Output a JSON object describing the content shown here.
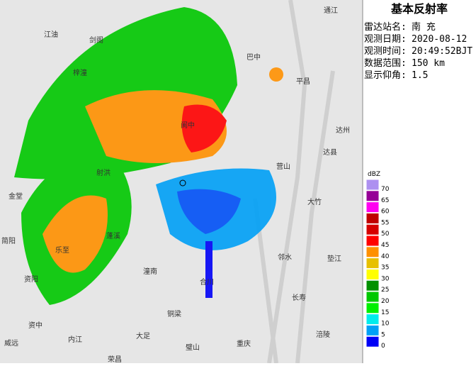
{
  "header": {
    "title": "基本反射率"
  },
  "info": [
    {
      "label": "雷达站名:",
      "value": "南 充"
    },
    {
      "label": "观测日期:",
      "value": "2020-08-12"
    },
    {
      "label": "观测时间:",
      "value": "20:49:52BJT"
    },
    {
      "label": "数据范围:",
      "value": "150 km"
    },
    {
      "label": "显示仰角:",
      "value": "1.5"
    }
  ],
  "legend": {
    "unit": "dBZ",
    "items": [
      {
        "label": "70",
        "color": "#ad90f0"
      },
      {
        "label": "65",
        "color": "#960096"
      },
      {
        "label": "60",
        "color": "#ff00f0"
      },
      {
        "label": "55",
        "color": "#c00000"
      },
      {
        "label": "50",
        "color": "#d60000"
      },
      {
        "label": "45",
        "color": "#ff0000"
      },
      {
        "label": "40",
        "color": "#ff9000"
      },
      {
        "label": "35",
        "color": "#e7c000"
      },
      {
        "label": "30",
        "color": "#ffff00"
      },
      {
        "label": "25",
        "color": "#019000"
      },
      {
        "label": "20",
        "color": "#00c800"
      },
      {
        "label": "15",
        "color": "#00f000"
      },
      {
        "label": "10",
        "color": "#00ecec"
      },
      {
        "label": "5",
        "color": "#00a0f6"
      },
      {
        "label": "0",
        "color": "#0000f6"
      }
    ]
  },
  "cities": [
    "通江",
    "江油",
    "剑阁",
    "巴中",
    "平昌",
    "梓潼",
    "阆中",
    "达州",
    "达县",
    "营山",
    "射洪",
    "金堂",
    "乐至",
    "简阳",
    "大竹",
    "蓬溪",
    "资阳",
    "邻水",
    "垫江",
    "潼南",
    "合川",
    "长寿",
    "铜梁",
    "资中",
    "大足",
    "内江",
    "璧山",
    "重庆",
    "涪陵",
    "威远",
    "荣昌"
  ]
}
